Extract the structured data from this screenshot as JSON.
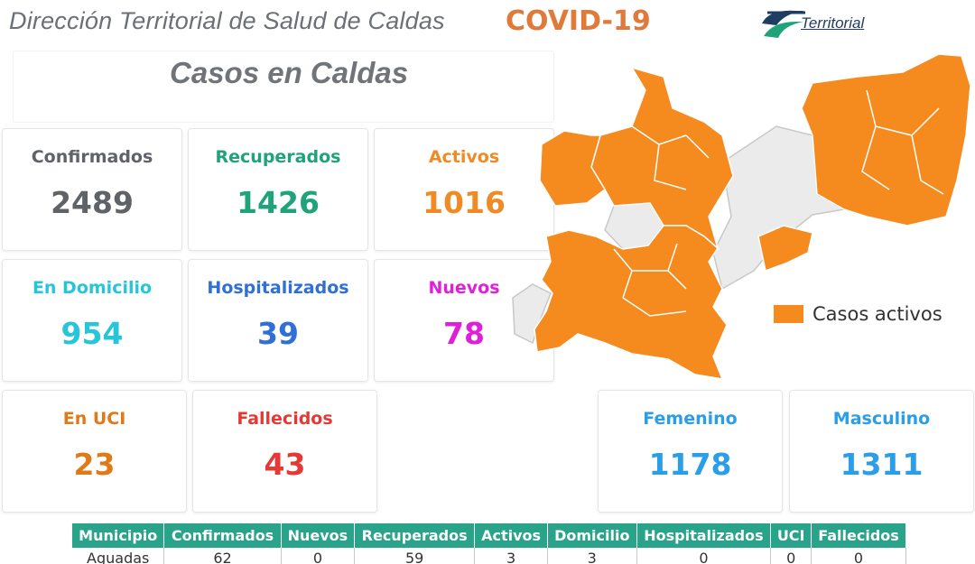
{
  "header": {
    "title": "Dirección Territorial de Salud de Caldas",
    "covid_label": "COVID-19",
    "logo_text": "Territorial"
  },
  "colors": {
    "covid": "#e07a3a",
    "map_active": "#f58a1f",
    "map_inactive": "#ebebeb",
    "table_header": "#29a389"
  },
  "panel": {
    "title": "Casos en Caldas"
  },
  "stats": [
    {
      "key": "confirmados",
      "label": "Confirmados",
      "value": "2489",
      "color": "#5f6368"
    },
    {
      "key": "recuperados",
      "label": "Recuperados",
      "value": "1426",
      "color": "#1fa37a"
    },
    {
      "key": "activos",
      "label": "Activos",
      "value": "1016",
      "color": "#f08a24"
    },
    {
      "key": "domicilio",
      "label": "En Domicilio",
      "value": "954",
      "color": "#26c6da"
    },
    {
      "key": "hospitalizados",
      "label": "Hospitalizados",
      "value": "39",
      "color": "#2f6fd8"
    },
    {
      "key": "nuevos",
      "label": "Nuevos",
      "value": "78",
      "color": "#e020d8"
    },
    {
      "key": "uci",
      "label": "En UCI",
      "value": "23",
      "color": "#e07a18"
    },
    {
      "key": "fallecidos",
      "label": "Fallecidos",
      "value": "43",
      "color": "#e53935"
    },
    {
      "key": "femenino",
      "label": "Femenino",
      "value": "1178",
      "color": "#2a9ee6"
    },
    {
      "key": "masculino",
      "label": "Masculino",
      "value": "1311",
      "color": "#2a9ee6"
    }
  ],
  "map": {
    "legend_label": "Casos activos"
  },
  "table": {
    "columns": [
      "Municipio",
      "Confirmados",
      "Nuevos",
      "Recuperados",
      "Activos",
      "Domicilio",
      "Hospitalizados",
      "UCI",
      "Fallecidos"
    ],
    "rows": [
      [
        "Aguadas",
        "62",
        "0",
        "59",
        "3",
        "3",
        "0",
        "0",
        "0"
      ]
    ]
  }
}
